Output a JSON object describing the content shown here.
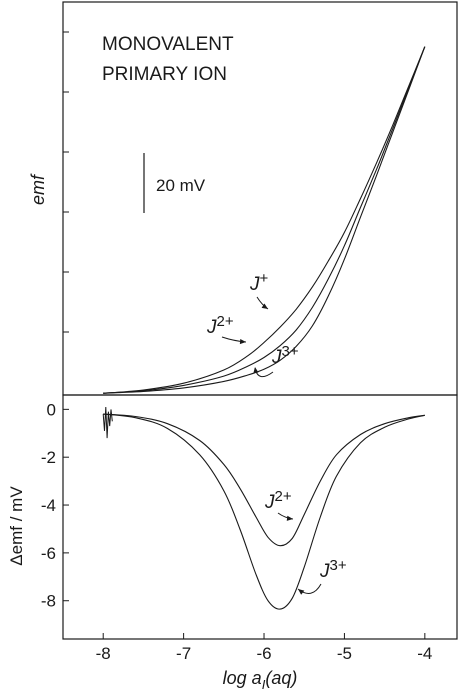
{
  "chart_data": [
    {
      "type": "line",
      "panel": "top",
      "annotation": {
        "line1": "MONOVALENT",
        "line2": "PRIMARY ION"
      },
      "scale_bar_label": "20 mV",
      "scale_bar_mV": 20,
      "ylabel": "emf",
      "xlim": [
        -8.5,
        -3.6
      ],
      "ylim": [
        2,
        112
      ],
      "series": [
        {
          "name": "J+",
          "label_main": "J",
          "label_sup": "+",
          "x": [
            -8.0,
            -7.5,
            -7.0,
            -6.5,
            -6.2,
            -6.0,
            -5.8,
            -5.6,
            -5.4,
            -5.2,
            -5.0,
            -4.8,
            -4.6,
            -4.4,
            -4.2,
            -4.0
          ],
          "y": [
            2.5,
            3.4,
            5.3,
            9.0,
            13.0,
            16.7,
            21.0,
            26.0,
            32.2,
            39.5,
            47.5,
            57.0,
            67.0,
            77.5,
            88.5,
            99.5
          ]
        },
        {
          "name": "J2+",
          "label_main": "J",
          "label_sup": "2+",
          "x": [
            -8.0,
            -7.5,
            -7.0,
            -6.5,
            -6.2,
            -6.0,
            -5.8,
            -5.6,
            -5.4,
            -5.2,
            -5.0,
            -4.8,
            -4.6,
            -4.4,
            -4.2,
            -4.0
          ],
          "y": [
            2.5,
            3.2,
            4.7,
            7.3,
            10.1,
            12.5,
            15.8,
            20.2,
            26.5,
            34.5,
            43.8,
            54.5,
            65.2,
            76.5,
            88.0,
            99.5
          ]
        },
        {
          "name": "J3+",
          "label_main": "J",
          "label_sup": "3+",
          "x": [
            -8.0,
            -7.5,
            -7.0,
            -6.5,
            -6.2,
            -6.0,
            -5.8,
            -5.6,
            -5.4,
            -5.2,
            -5.0,
            -4.8,
            -4.6,
            -4.4,
            -4.2,
            -4.0
          ],
          "y": [
            2.5,
            3.0,
            4.0,
            5.8,
            7.6,
            9.2,
            11.7,
            15.6,
            21.3,
            29.7,
            40.0,
            51.8,
            63.5,
            75.5,
            87.5,
            99.5
          ]
        }
      ]
    },
    {
      "type": "line",
      "panel": "bottom",
      "xlabel_main": "log a",
      "xlabel_sub": "I",
      "xlabel_tail": "(aq)",
      "ylabel": "Δemf / mV",
      "xlim": [
        -8.5,
        -3.6
      ],
      "ylim": [
        -9.6,
        0.6
      ],
      "x_ticks": [
        -8,
        -7,
        -6,
        -5,
        -4
      ],
      "x_tick_labels": [
        "-8",
        "-7",
        "-6",
        "-5",
        "-4"
      ],
      "y_ticks": [
        0,
        -2,
        -4,
        -6,
        -8
      ],
      "y_tick_labels": [
        "0",
        "-2",
        "-4",
        "-6",
        "-8"
      ],
      "series": [
        {
          "name": "J2+",
          "label_main": "J",
          "label_sup": "2+",
          "x": [
            -8.0,
            -7.6,
            -7.2,
            -6.8,
            -6.5,
            -6.3,
            -6.1,
            -5.95,
            -5.8,
            -5.65,
            -5.5,
            -5.3,
            -5.1,
            -4.8,
            -4.5,
            -4.2,
            -4.0
          ],
          "y": [
            -0.2,
            -0.3,
            -0.6,
            -1.3,
            -2.3,
            -3.3,
            -4.5,
            -5.35,
            -5.7,
            -5.4,
            -4.4,
            -3.0,
            -1.9,
            -1.05,
            -0.6,
            -0.35,
            -0.25
          ]
        },
        {
          "name": "J3+",
          "label_main": "J",
          "label_sup": "3+",
          "x": [
            -8.0,
            -7.6,
            -7.2,
            -6.8,
            -6.5,
            -6.3,
            -6.1,
            -5.95,
            -5.8,
            -5.65,
            -5.5,
            -5.3,
            -5.1,
            -4.8,
            -4.5,
            -4.2,
            -4.0
          ],
          "y": [
            -0.2,
            -0.35,
            -0.8,
            -1.9,
            -3.4,
            -5.0,
            -6.9,
            -8.0,
            -8.35,
            -7.9,
            -6.6,
            -4.5,
            -2.8,
            -1.4,
            -0.75,
            -0.4,
            -0.25
          ]
        }
      ]
    }
  ]
}
